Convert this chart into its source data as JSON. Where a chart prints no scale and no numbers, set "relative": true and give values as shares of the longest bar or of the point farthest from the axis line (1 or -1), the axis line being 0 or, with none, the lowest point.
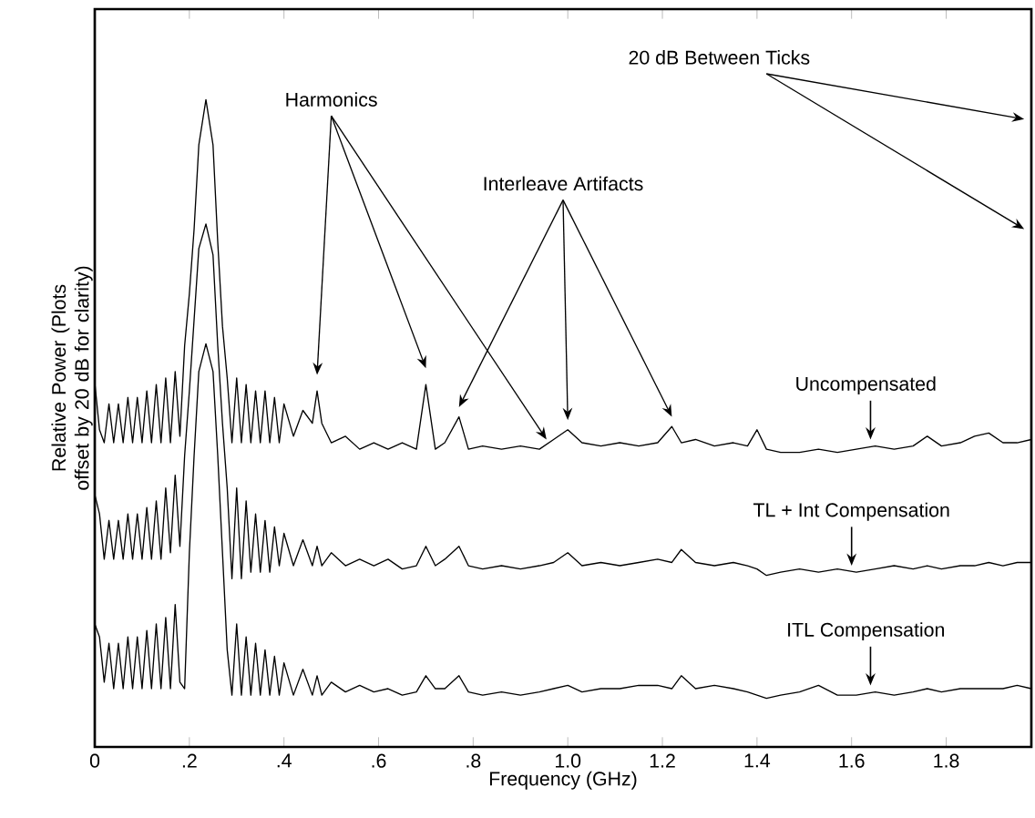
{
  "chart_data": {
    "type": "line",
    "relative": true,
    "xlabel": "Frequency (GHz)",
    "ylabel": "Relative Power (Plots offset by 20 dB for clarity)",
    "xlim": [
      0,
      1.98
    ],
    "xticks": [
      0,
      {
        "value": 0.2,
        "label": ".2"
      },
      {
        "value": 0.4,
        "label": ".4"
      },
      {
        "value": 0.6,
        "label": ".6"
      },
      {
        "value": 0.8,
        "label": ".8"
      },
      {
        "value": 1.0,
        "label": "1.0"
      },
      {
        "value": 1.2,
        "label": "1.2"
      },
      {
        "value": 1.4,
        "label": "1.4"
      },
      {
        "value": 1.6,
        "label": "1.6"
      },
      {
        "value": 1.8,
        "label": "1.8"
      }
    ],
    "annotations": [
      "Harmonics",
      "Interleave Artifacts",
      "20 dB Between Ticks"
    ],
    "x": [
      0,
      0.01,
      0.02,
      0.03,
      0.04,
      0.05,
      0.06,
      0.07,
      0.08,
      0.09,
      0.1,
      0.11,
      0.12,
      0.13,
      0.14,
      0.15,
      0.16,
      0.17,
      0.18,
      0.19,
      0.2,
      0.21,
      0.22,
      0.235,
      0.25,
      0.26,
      0.27,
      0.28,
      0.29,
      0.3,
      0.31,
      0.32,
      0.33,
      0.34,
      0.35,
      0.36,
      0.37,
      0.38,
      0.39,
      0.4,
      0.42,
      0.44,
      0.46,
      0.47,
      0.48,
      0.5,
      0.53,
      0.56,
      0.59,
      0.62,
      0.65,
      0.68,
      0.7,
      0.72,
      0.74,
      0.77,
      0.79,
      0.82,
      0.86,
      0.9,
      0.94,
      0.97,
      1.0,
      1.03,
      1.07,
      1.11,
      1.15,
      1.19,
      1.22,
      1.24,
      1.27,
      1.31,
      1.35,
      1.38,
      1.4,
      1.42,
      1.45,
      1.49,
      1.53,
      1.57,
      1.61,
      1.65,
      1.69,
      1.73,
      1.76,
      1.79,
      1.83,
      1.86,
      1.89,
      1.92,
      1.95,
      1.98
    ],
    "line_style": "solid",
    "marker": "none",
    "series": [
      {
        "name": "Uncompensated",
        "color": "#000000",
        "values": [
          0.563,
          0.49,
          0.47,
          0.53,
          0.47,
          0.53,
          0.47,
          0.54,
          0.47,
          0.54,
          0.47,
          0.55,
          0.47,
          0.56,
          0.47,
          0.57,
          0.47,
          0.58,
          0.48,
          0.62,
          0.7,
          0.8,
          0.93,
          1.0,
          0.93,
          0.78,
          0.65,
          0.57,
          0.47,
          0.57,
          0.47,
          0.56,
          0.47,
          0.55,
          0.47,
          0.55,
          0.47,
          0.54,
          0.47,
          0.53,
          0.48,
          0.52,
          0.5,
          0.55,
          0.5,
          0.47,
          0.48,
          0.46,
          0.47,
          0.46,
          0.47,
          0.46,
          0.56,
          0.46,
          0.47,
          0.51,
          0.46,
          0.465,
          0.46,
          0.465,
          0.46,
          0.475,
          0.49,
          0.47,
          0.465,
          0.47,
          0.465,
          0.47,
          0.495,
          0.47,
          0.475,
          0.465,
          0.47,
          0.465,
          0.49,
          0.46,
          0.455,
          0.455,
          0.46,
          0.455,
          0.46,
          0.465,
          0.46,
          0.465,
          0.48,
          0.465,
          0.47,
          0.48,
          0.485,
          0.47,
          0.47,
          0.475
        ]
      },
      {
        "name": "TL + Int Compensation",
        "color": "#000000",
        "values": [
          0.39,
          0.36,
          0.29,
          0.35,
          0.29,
          0.35,
          0.29,
          0.36,
          0.29,
          0.36,
          0.29,
          0.37,
          0.29,
          0.38,
          0.29,
          0.4,
          0.3,
          0.42,
          0.31,
          0.45,
          0.55,
          0.66,
          0.77,
          0.808,
          0.76,
          0.62,
          0.5,
          0.4,
          0.26,
          0.4,
          0.26,
          0.38,
          0.27,
          0.36,
          0.27,
          0.35,
          0.27,
          0.34,
          0.28,
          0.33,
          0.28,
          0.32,
          0.28,
          0.31,
          0.28,
          0.3,
          0.28,
          0.29,
          0.28,
          0.29,
          0.275,
          0.28,
          0.31,
          0.28,
          0.29,
          0.31,
          0.28,
          0.275,
          0.28,
          0.275,
          0.28,
          0.285,
          0.3,
          0.28,
          0.285,
          0.28,
          0.285,
          0.29,
          0.285,
          0.305,
          0.285,
          0.28,
          0.285,
          0.28,
          0.275,
          0.265,
          0.27,
          0.275,
          0.27,
          0.275,
          0.27,
          0.275,
          0.28,
          0.275,
          0.28,
          0.275,
          0.28,
          0.28,
          0.285,
          0.28,
          0.285,
          0.285
        ]
      },
      {
        "name": "ITL Compensation",
        "color": "#000000",
        "values": [
          0.19,
          0.17,
          0.1,
          0.16,
          0.09,
          0.16,
          0.09,
          0.17,
          0.09,
          0.17,
          0.09,
          0.18,
          0.09,
          0.19,
          0.09,
          0.2,
          0.09,
          0.22,
          0.1,
          0.09,
          0.3,
          0.45,
          0.58,
          0.623,
          0.58,
          0.45,
          0.3,
          0.15,
          0.08,
          0.19,
          0.08,
          0.17,
          0.08,
          0.16,
          0.08,
          0.15,
          0.08,
          0.14,
          0.08,
          0.13,
          0.08,
          0.12,
          0.08,
          0.11,
          0.08,
          0.1,
          0.085,
          0.095,
          0.085,
          0.09,
          0.08,
          0.085,
          0.11,
          0.09,
          0.09,
          0.11,
          0.085,
          0.08,
          0.085,
          0.08,
          0.085,
          0.09,
          0.095,
          0.085,
          0.09,
          0.09,
          0.095,
          0.095,
          0.09,
          0.11,
          0.09,
          0.095,
          0.09,
          0.085,
          0.08,
          0.075,
          0.08,
          0.085,
          0.095,
          0.08,
          0.08,
          0.085,
          0.08,
          0.085,
          0.09,
          0.085,
          0.09,
          0.09,
          0.09,
          0.09,
          0.095,
          0.09
        ]
      }
    ]
  }
}
